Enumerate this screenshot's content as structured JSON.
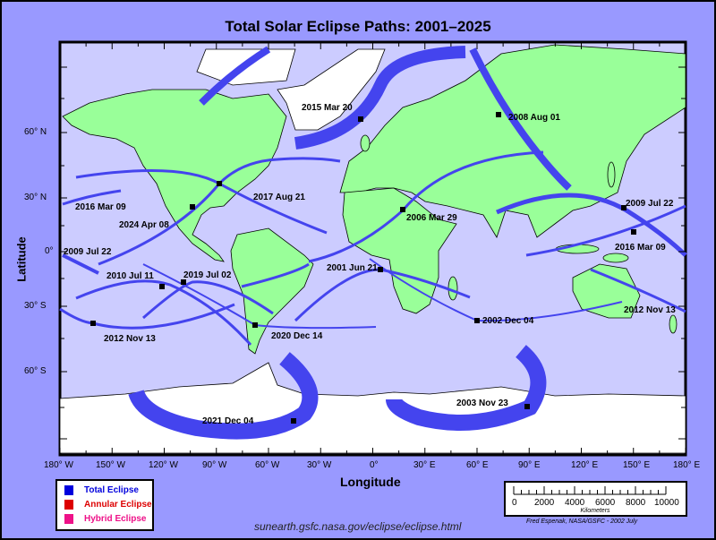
{
  "title": "Total Solar Eclipse Paths:  2001–2025",
  "axes": {
    "xlabel": "Longitude",
    "ylabel": "Latitude",
    "x_ticks": [
      "180° W",
      "150° W",
      "120° W",
      "90° W",
      "60° W",
      "30° W",
      "0°",
      "30° E",
      "60° E",
      "90° E",
      "120° E",
      "150° E",
      "180° E"
    ],
    "y_ticks": [
      "60° N",
      "30° N",
      "0°",
      "30° S",
      "60° S"
    ]
  },
  "eclipses": [
    {
      "label": "2015 Mar 20"
    },
    {
      "label": "2008 Aug 01"
    },
    {
      "label": "2017 Aug 21"
    },
    {
      "label": "2016 Mar 09"
    },
    {
      "label": "2024 Apr 08"
    },
    {
      "label": "2006 Mar 29"
    },
    {
      "label": "2009 Jul 22"
    },
    {
      "label": "2009 Jul 22"
    },
    {
      "label": "2016 Mar 09"
    },
    {
      "label": "2001 Jun 21"
    },
    {
      "label": "2010 Jul 11"
    },
    {
      "label": "2019 Jul 02"
    },
    {
      "label": "2012 Nov 13"
    },
    {
      "label": "2020 Dec 14"
    },
    {
      "label": "2002 Dec 04"
    },
    {
      "label": "2012 Nov 13"
    },
    {
      "label": "2021 Dec 04"
    },
    {
      "label": "2003 Nov 23"
    }
  ],
  "legend": [
    {
      "label": "Total Eclipse",
      "color": "#0000dd"
    },
    {
      "label": "Annular Eclipse",
      "color": "#dd0000"
    },
    {
      "label": "Hybrid Eclipse",
      "color": "#ee1188"
    }
  ],
  "scale_bar": {
    "labels": [
      "0",
      "2000",
      "4000",
      "6000",
      "8000",
      "10000"
    ],
    "unit": "Kilometers"
  },
  "credit": "Fred Espenak, NASA/GSFC - 2002 July",
  "url": "sunearth.gsfc.nasa.gov/eclipse/eclipse.html",
  "colors": {
    "background": "#9999ff",
    "ocean": "#ccccff",
    "land": "#99ff99",
    "ice": "#ffffff",
    "path": "#4444ee"
  }
}
